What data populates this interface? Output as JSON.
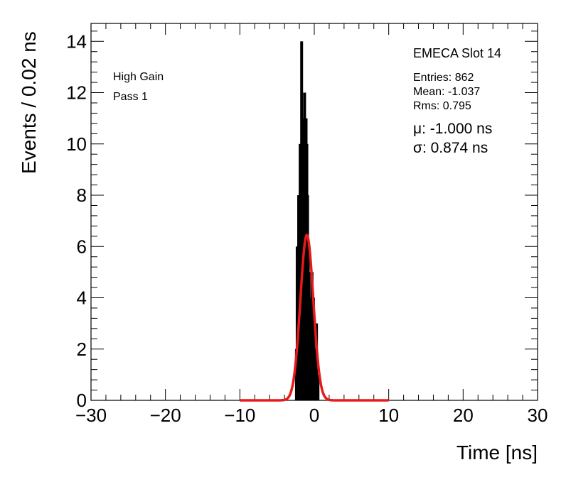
{
  "chart_data": {
    "type": "histogram",
    "xlabel": "Time [ns]",
    "ylabel": "Events / 0.02 ns",
    "xlim": [
      -30,
      30
    ],
    "ylim": [
      0,
      14.7
    ],
    "x_ticks": [
      -30,
      -20,
      -10,
      0,
      10,
      20,
      30
    ],
    "x_tick_labels": [
      "−30",
      "−20",
      "−10",
      "0",
      "10",
      "20",
      "30"
    ],
    "y_ticks": [
      0,
      2,
      4,
      6,
      8,
      10,
      12,
      14
    ],
    "y_tick_labels": [
      "0",
      "2",
      "4",
      "6",
      "8",
      "10",
      "12",
      "14"
    ],
    "grid": false,
    "bin_width": 0.02,
    "histogram": {
      "x": [
        -2.4,
        -2.3,
        -2.2,
        -2.1,
        -2.0,
        -1.9,
        -1.8,
        -1.7,
        -1.6,
        -1.5,
        -1.4,
        -1.3,
        -1.2,
        -1.1,
        -1.0,
        -0.9,
        -0.8,
        -0.7,
        -0.6,
        -0.5,
        -0.4,
        -0.3,
        -0.2,
        -0.1,
        0.0,
        0.1,
        0.2,
        0.3,
        0.4,
        0.5
      ],
      "y": [
        2,
        6,
        4,
        8,
        7,
        10,
        9,
        14,
        8,
        11,
        10,
        12,
        9,
        11,
        10,
        8,
        6,
        5,
        4,
        3,
        3,
        5,
        2,
        4,
        1,
        2,
        1,
        3,
        1,
        1
      ],
      "color": "#000000"
    },
    "fit": {
      "function": "gaussian",
      "mean": -1.0,
      "sigma": 0.874,
      "amplitude": 6.45,
      "x_range": [
        -10,
        10
      ],
      "color": "#e8191a"
    },
    "text_left": [
      "High Gain",
      "Pass 1"
    ],
    "stats": {
      "title": "EMECA Slot 14",
      "entries": "Entries: 862",
      "mean": "Mean: -1.037",
      "rms": "Rms: 0.795",
      "mu": "μ: -1.000 ns",
      "sigma": "σ: 0.874 ns"
    }
  }
}
